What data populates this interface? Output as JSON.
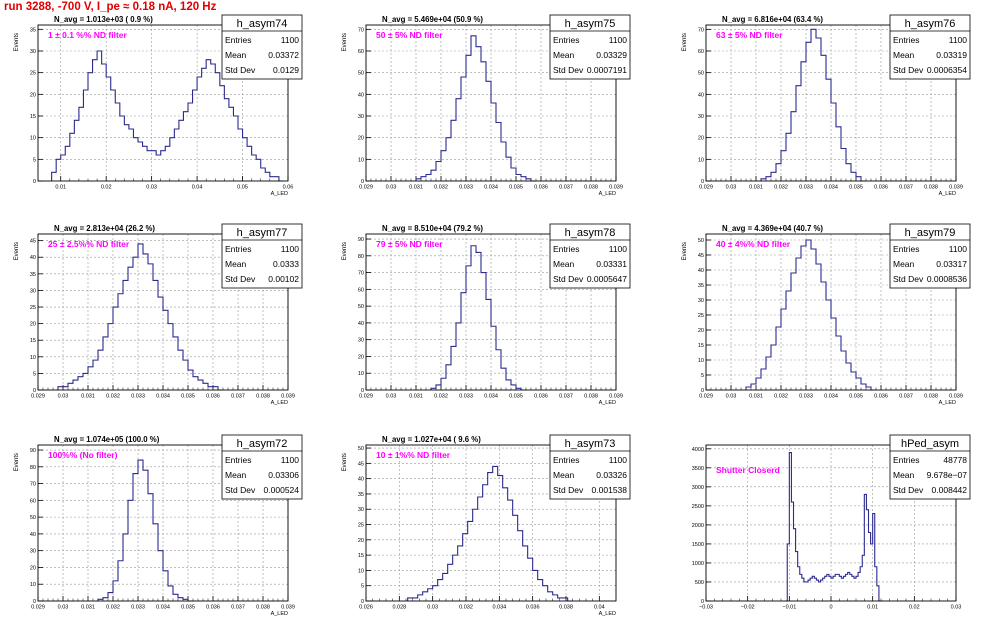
{
  "page_title": "run 3288,  -700 V, I_pe ≈ 0.18 nA, 120 Hz",
  "stat_labels": {
    "entries": "Entries",
    "mean": "Mean",
    "std": "Std Dev"
  },
  "colors": {
    "histogram": "#2b2b8f",
    "annotation": "#ff00ff",
    "run_title": "#e00000",
    "grid": "#999999"
  },
  "chart_data": [
    {
      "type": "histogram",
      "name": "h_asym74",
      "ylabel": "Events",
      "xlabel": "A_LED",
      "xlim": [
        0.005,
        0.06
      ],
      "ylim": [
        0,
        36
      ],
      "xticks": [
        0.01,
        0.02,
        0.03,
        0.04,
        0.05,
        0.06
      ],
      "xtick_labels": [
        "0.01",
        "0.02",
        "0.03",
        "0.04",
        "0.05",
        "0.06"
      ],
      "yticks": [
        0,
        5,
        10,
        15,
        20,
        25,
        30,
        35
      ],
      "stats": {
        "entries": "1100",
        "mean": "0.03372",
        "std": "0.0129"
      },
      "n_avg_label": "N_avg = 1.013e+03 ( 0.9 %)",
      "filter_label": "1 ± 0.1 %% ND filter",
      "bins": [
        0.008,
        0.009,
        0.01,
        0.011,
        0.012,
        0.013,
        0.014,
        0.015,
        0.016,
        0.017,
        0.018,
        0.019,
        0.02,
        0.021,
        0.022,
        0.023,
        0.024,
        0.025,
        0.026,
        0.027,
        0.028,
        0.029,
        0.03,
        0.031,
        0.032,
        0.033,
        0.034,
        0.035,
        0.036,
        0.037,
        0.038,
        0.039,
        0.04,
        0.041,
        0.042,
        0.043,
        0.044,
        0.045,
        0.046,
        0.047,
        0.048,
        0.049,
        0.05,
        0.051,
        0.052,
        0.053,
        0.054,
        0.055,
        0.056,
        0.057,
        0.058
      ],
      "counts": [
        2,
        5,
        6,
        8,
        11,
        14,
        17,
        21,
        25,
        28,
        30,
        27,
        24,
        21,
        18,
        15,
        13,
        12,
        10,
        9,
        8,
        7,
        7,
        6,
        7,
        8,
        10,
        12,
        14,
        16,
        18,
        21,
        24,
        26,
        28,
        27,
        25,
        22,
        19,
        17,
        15,
        12,
        10,
        8,
        6,
        5,
        3,
        2,
        1,
        1,
        0
      ]
    },
    {
      "type": "histogram",
      "name": "h_asym75",
      "ylabel": "Events",
      "xlabel": "A_LED",
      "xlim": [
        0.029,
        0.039
      ],
      "ylim": [
        0,
        72
      ],
      "xticks": [
        0.029,
        0.03,
        0.031,
        0.032,
        0.033,
        0.034,
        0.035,
        0.036,
        0.037,
        0.038,
        0.039
      ],
      "xtick_labels": [
        "0.029",
        "0.03",
        "0.031",
        "0.032",
        "0.033",
        "0.034",
        "0.035",
        "0.036",
        "0.037",
        "0.038",
        "0.039"
      ],
      "yticks": [
        0,
        10,
        20,
        30,
        40,
        50,
        60,
        70
      ],
      "stats": {
        "entries": "1100",
        "mean": "0.03329",
        "std": "0.0007191"
      },
      "n_avg_label": "N_avg = 5.469e+04 (50.9 %)",
      "filter_label": "50 ± 5% ND filter",
      "bins": [
        0.031,
        0.0312,
        0.0314,
        0.0316,
        0.0318,
        0.032,
        0.0322,
        0.0324,
        0.0326,
        0.0328,
        0.033,
        0.0332,
        0.0334,
        0.0336,
        0.0338,
        0.034,
        0.0342,
        0.0344,
        0.0346,
        0.0348,
        0.035,
        0.0352,
        0.0354,
        0.0356
      ],
      "counts": [
        1,
        2,
        3,
        5,
        9,
        14,
        20,
        28,
        38,
        48,
        58,
        67,
        62,
        55,
        46,
        36,
        27,
        18,
        11,
        6,
        3,
        2,
        1,
        0
      ]
    },
    {
      "type": "histogram",
      "name": "h_asym76",
      "ylabel": "Events",
      "xlabel": "A_LED",
      "xlim": [
        0.029,
        0.039
      ],
      "ylim": [
        0,
        72
      ],
      "xticks": [
        0.029,
        0.03,
        0.031,
        0.032,
        0.033,
        0.034,
        0.035,
        0.036,
        0.037,
        0.038,
        0.039
      ],
      "xtick_labels": [
        "0.029",
        "0.03",
        "0.031",
        "0.032",
        "0.033",
        "0.034",
        "0.035",
        "0.036",
        "0.037",
        "0.038",
        "0.039"
      ],
      "yticks": [
        0,
        10,
        20,
        30,
        40,
        50,
        60,
        70
      ],
      "stats": {
        "entries": "1100",
        "mean": "0.03319",
        "std": "0.0006354"
      },
      "n_avg_label": "N_avg = 6.816e+04 (63.4 %)",
      "filter_label": "63 ± 5% ND filter",
      "bins": [
        0.0312,
        0.0314,
        0.0316,
        0.0318,
        0.032,
        0.0322,
        0.0324,
        0.0326,
        0.0328,
        0.033,
        0.0332,
        0.0334,
        0.0336,
        0.0338,
        0.034,
        0.0342,
        0.0344,
        0.0346,
        0.0348,
        0.035,
        0.0352
      ],
      "counts": [
        1,
        2,
        4,
        8,
        14,
        22,
        32,
        44,
        55,
        64,
        70,
        66,
        58,
        47,
        36,
        25,
        15,
        8,
        4,
        2,
        0
      ]
    },
    {
      "type": "histogram",
      "name": "h_asym77",
      "ylabel": "Events",
      "xlabel": "A_LED",
      "xlim": [
        0.029,
        0.039
      ],
      "ylim": [
        0,
        47
      ],
      "xticks": [
        0.029,
        0.03,
        0.031,
        0.032,
        0.033,
        0.034,
        0.035,
        0.036,
        0.037,
        0.038,
        0.039
      ],
      "xtick_labels": [
        "0.029",
        "0.03",
        "0.031",
        "0.032",
        "0.033",
        "0.034",
        "0.035",
        "0.036",
        "0.037",
        "0.038",
        "0.039"
      ],
      "yticks": [
        0,
        5,
        10,
        15,
        20,
        25,
        30,
        35,
        40,
        45
      ],
      "stats": {
        "entries": "1100",
        "mean": "0.0333",
        "std": "0.00102"
      },
      "n_avg_label": "N_avg = 2.813e+04 (26.2 %)",
      "filter_label": "25 ± 2.5%% ND filter",
      "bins": [
        0.0298,
        0.03,
        0.0302,
        0.0304,
        0.0306,
        0.0308,
        0.031,
        0.0312,
        0.0314,
        0.0316,
        0.0318,
        0.032,
        0.0322,
        0.0324,
        0.0326,
        0.0328,
        0.033,
        0.0332,
        0.0334,
        0.0336,
        0.0338,
        0.034,
        0.0342,
        0.0344,
        0.0346,
        0.0348,
        0.035,
        0.0352,
        0.0354,
        0.0356,
        0.0358,
        0.036,
        0.0362
      ],
      "counts": [
        1,
        1,
        2,
        3,
        4,
        5,
        7,
        9,
        12,
        16,
        20,
        25,
        29,
        33,
        37,
        40,
        44,
        41,
        38,
        33,
        28,
        24,
        20,
        16,
        12,
        9,
        6,
        4,
        3,
        2,
        1,
        1,
        0
      ]
    },
    {
      "type": "histogram",
      "name": "h_asym78",
      "ylabel": "Events",
      "xlabel": "A_LED",
      "xlim": [
        0.029,
        0.039
      ],
      "ylim": [
        0,
        93
      ],
      "xticks": [
        0.029,
        0.03,
        0.031,
        0.032,
        0.033,
        0.034,
        0.035,
        0.036,
        0.037,
        0.038,
        0.039
      ],
      "xtick_labels": [
        "0.029",
        "0.03",
        "0.031",
        "0.032",
        "0.033",
        "0.034",
        "0.035",
        "0.036",
        "0.037",
        "0.038",
        "0.039"
      ],
      "yticks": [
        0,
        10,
        20,
        30,
        40,
        50,
        60,
        70,
        80,
        90
      ],
      "stats": {
        "entries": "1100",
        "mean": "0.03331",
        "std": "0.0005647"
      },
      "n_avg_label": "N_avg = 8.510e+04 (79.2 %)",
      "filter_label": "79 ± 5% ND filter",
      "bins": [
        0.0316,
        0.0318,
        0.032,
        0.0322,
        0.0324,
        0.0326,
        0.0328,
        0.033,
        0.0332,
        0.0334,
        0.0336,
        0.0338,
        0.034,
        0.0342,
        0.0344,
        0.0346,
        0.0348,
        0.035,
        0.0352
      ],
      "counts": [
        1,
        3,
        7,
        15,
        26,
        40,
        58,
        74,
        86,
        82,
        70,
        54,
        38,
        24,
        13,
        6,
        3,
        1,
        0
      ]
    },
    {
      "type": "histogram",
      "name": "h_asym79",
      "ylabel": "Events",
      "xlabel": "A_LED",
      "xlim": [
        0.029,
        0.039
      ],
      "ylim": [
        0,
        52
      ],
      "xticks": [
        0.029,
        0.03,
        0.031,
        0.032,
        0.033,
        0.034,
        0.035,
        0.036,
        0.037,
        0.038,
        0.039
      ],
      "xtick_labels": [
        "0.029",
        "0.03",
        "0.031",
        "0.032",
        "0.033",
        "0.034",
        "0.035",
        "0.036",
        "0.037",
        "0.038",
        "0.039"
      ],
      "yticks": [
        0,
        5,
        10,
        15,
        20,
        25,
        30,
        35,
        40,
        45,
        50
      ],
      "stats": {
        "entries": "1100",
        "mean": "0.03317",
        "std": "0.0008536"
      },
      "n_avg_label": "N_avg = 4.369e+04 (40.7 %)",
      "filter_label": "40 ± 4%% ND filter",
      "bins": [
        0.0306,
        0.0308,
        0.031,
        0.0312,
        0.0314,
        0.0316,
        0.0318,
        0.032,
        0.0322,
        0.0324,
        0.0326,
        0.0328,
        0.033,
        0.0332,
        0.0334,
        0.0336,
        0.0338,
        0.034,
        0.0342,
        0.0344,
        0.0346,
        0.0348,
        0.035,
        0.0352,
        0.0354,
        0.0356
      ],
      "counts": [
        1,
        2,
        4,
        7,
        11,
        15,
        21,
        27,
        33,
        39,
        44,
        48,
        50,
        47,
        42,
        36,
        30,
        24,
        18,
        13,
        9,
        6,
        4,
        2,
        1,
        0
      ]
    },
    {
      "type": "histogram",
      "name": "h_asym72",
      "ylabel": "Events",
      "xlabel": "A_LED",
      "xlim": [
        0.029,
        0.039
      ],
      "ylim": [
        0,
        93
      ],
      "xticks": [
        0.029,
        0.03,
        0.031,
        0.032,
        0.033,
        0.034,
        0.035,
        0.036,
        0.037,
        0.038,
        0.039
      ],
      "xtick_labels": [
        "0.029",
        "0.03",
        "0.031",
        "0.032",
        "0.033",
        "0.034",
        "0.035",
        "0.036",
        "0.037",
        "0.038",
        "0.039"
      ],
      "yticks": [
        0,
        10,
        20,
        30,
        40,
        50,
        60,
        70,
        80,
        90
      ],
      "stats": {
        "entries": "1100",
        "mean": "0.03306",
        "std": "0.000524"
      },
      "n_avg_label": "N_avg = 1.074e+05 (100.0 %)",
      "filter_label": "100%% (No filter)",
      "bins": [
        0.0314,
        0.0316,
        0.0318,
        0.032,
        0.0322,
        0.0324,
        0.0326,
        0.0328,
        0.033,
        0.0332,
        0.0334,
        0.0336,
        0.0338,
        0.034,
        0.0342,
        0.0344,
        0.0346,
        0.0348,
        0.035
      ],
      "counts": [
        1,
        2,
        5,
        12,
        24,
        40,
        60,
        76,
        84,
        78,
        64,
        46,
        30,
        18,
        9,
        4,
        2,
        1,
        0
      ]
    },
    {
      "type": "histogram",
      "name": "h_asym73",
      "ylabel": "Events",
      "xlabel": "A_LED",
      "xlim": [
        0.026,
        0.041
      ],
      "ylim": [
        0,
        51
      ],
      "xticks": [
        0.026,
        0.028,
        0.03,
        0.032,
        0.034,
        0.036,
        0.038,
        0.04
      ],
      "xtick_labels": [
        "0.026",
        "0.028",
        "0.03",
        "0.032",
        "0.034",
        "0.036",
        "0.038",
        "0.04"
      ],
      "yticks": [
        0,
        5,
        10,
        15,
        20,
        25,
        30,
        35,
        40,
        45,
        50
      ],
      "stats": {
        "entries": "1100",
        "mean": "0.03326",
        "std": "0.001538"
      },
      "n_avg_label": "N_avg = 1.027e+04 ( 9.6 %)",
      "filter_label": "10 ± 1%% ND filter",
      "bins": [
        0.0285,
        0.0288,
        0.0291,
        0.0294,
        0.0297,
        0.03,
        0.0303,
        0.0306,
        0.0309,
        0.0312,
        0.0315,
        0.0318,
        0.0321,
        0.0324,
        0.0327,
        0.033,
        0.0333,
        0.0336,
        0.0339,
        0.0342,
        0.0345,
        0.0348,
        0.0351,
        0.0354,
        0.0357,
        0.036,
        0.0363,
        0.0366,
        0.0369,
        0.0372,
        0.0375,
        0.0378,
        0.0381
      ],
      "counts": [
        1,
        1,
        2,
        3,
        4,
        5,
        7,
        9,
        12,
        15,
        18,
        22,
        26,
        30,
        34,
        38,
        42,
        44,
        41,
        37,
        33,
        28,
        23,
        18,
        14,
        10,
        7,
        5,
        3,
        2,
        1,
        1,
        0
      ]
    },
    {
      "type": "histogram",
      "name": "hPed_asym",
      "ylabel": "",
      "xlabel": "",
      "xlim": [
        -0.03,
        0.03
      ],
      "ylim": [
        0,
        4100
      ],
      "xticks": [
        -0.03,
        -0.02,
        -0.01,
        0,
        0.01,
        0.02,
        0.03
      ],
      "xtick_labels": [
        "−0.03",
        "−0.02",
        "−0.01",
        "0",
        "0.01",
        "0.02",
        "0.03"
      ],
      "yticks": [
        0,
        500,
        1000,
        1500,
        2000,
        2500,
        3000,
        3500,
        4000
      ],
      "stats": {
        "entries": "48778",
        "mean": "9.678e−07",
        "std": "0.008442"
      },
      "n_avg_label": "",
      "filter_label": "Shutter Closerd",
      "bins": [
        -0.011,
        -0.0105,
        -0.01,
        -0.0095,
        -0.009,
        -0.0085,
        -0.008,
        -0.0075,
        -0.007,
        -0.0065,
        -0.006,
        -0.0055,
        -0.005,
        -0.0045,
        -0.004,
        -0.0035,
        -0.003,
        -0.0025,
        -0.002,
        -0.0015,
        -0.001,
        -0.0005,
        0,
        0.0005,
        0.001,
        0.0015,
        0.002,
        0.0025,
        0.003,
        0.0035,
        0.004,
        0.0045,
        0.005,
        0.0055,
        0.006,
        0.0065,
        0.007,
        0.0075,
        0.008,
        0.0085,
        0.009,
        0.0095,
        0.01,
        0.0105,
        0.011,
        0.0115,
        0.012
      ],
      "counts": [
        0,
        1500,
        3900,
        2600,
        1900,
        1300,
        900,
        700,
        600,
        500,
        500,
        550,
        600,
        650,
        600,
        550,
        500,
        550,
        600,
        650,
        700,
        650,
        600,
        650,
        700,
        700,
        650,
        600,
        650,
        700,
        750,
        700,
        650,
        600,
        650,
        750,
        900,
        1200,
        2800,
        2400,
        1800,
        1500,
        2300,
        900,
        400,
        0,
        0
      ]
    }
  ]
}
